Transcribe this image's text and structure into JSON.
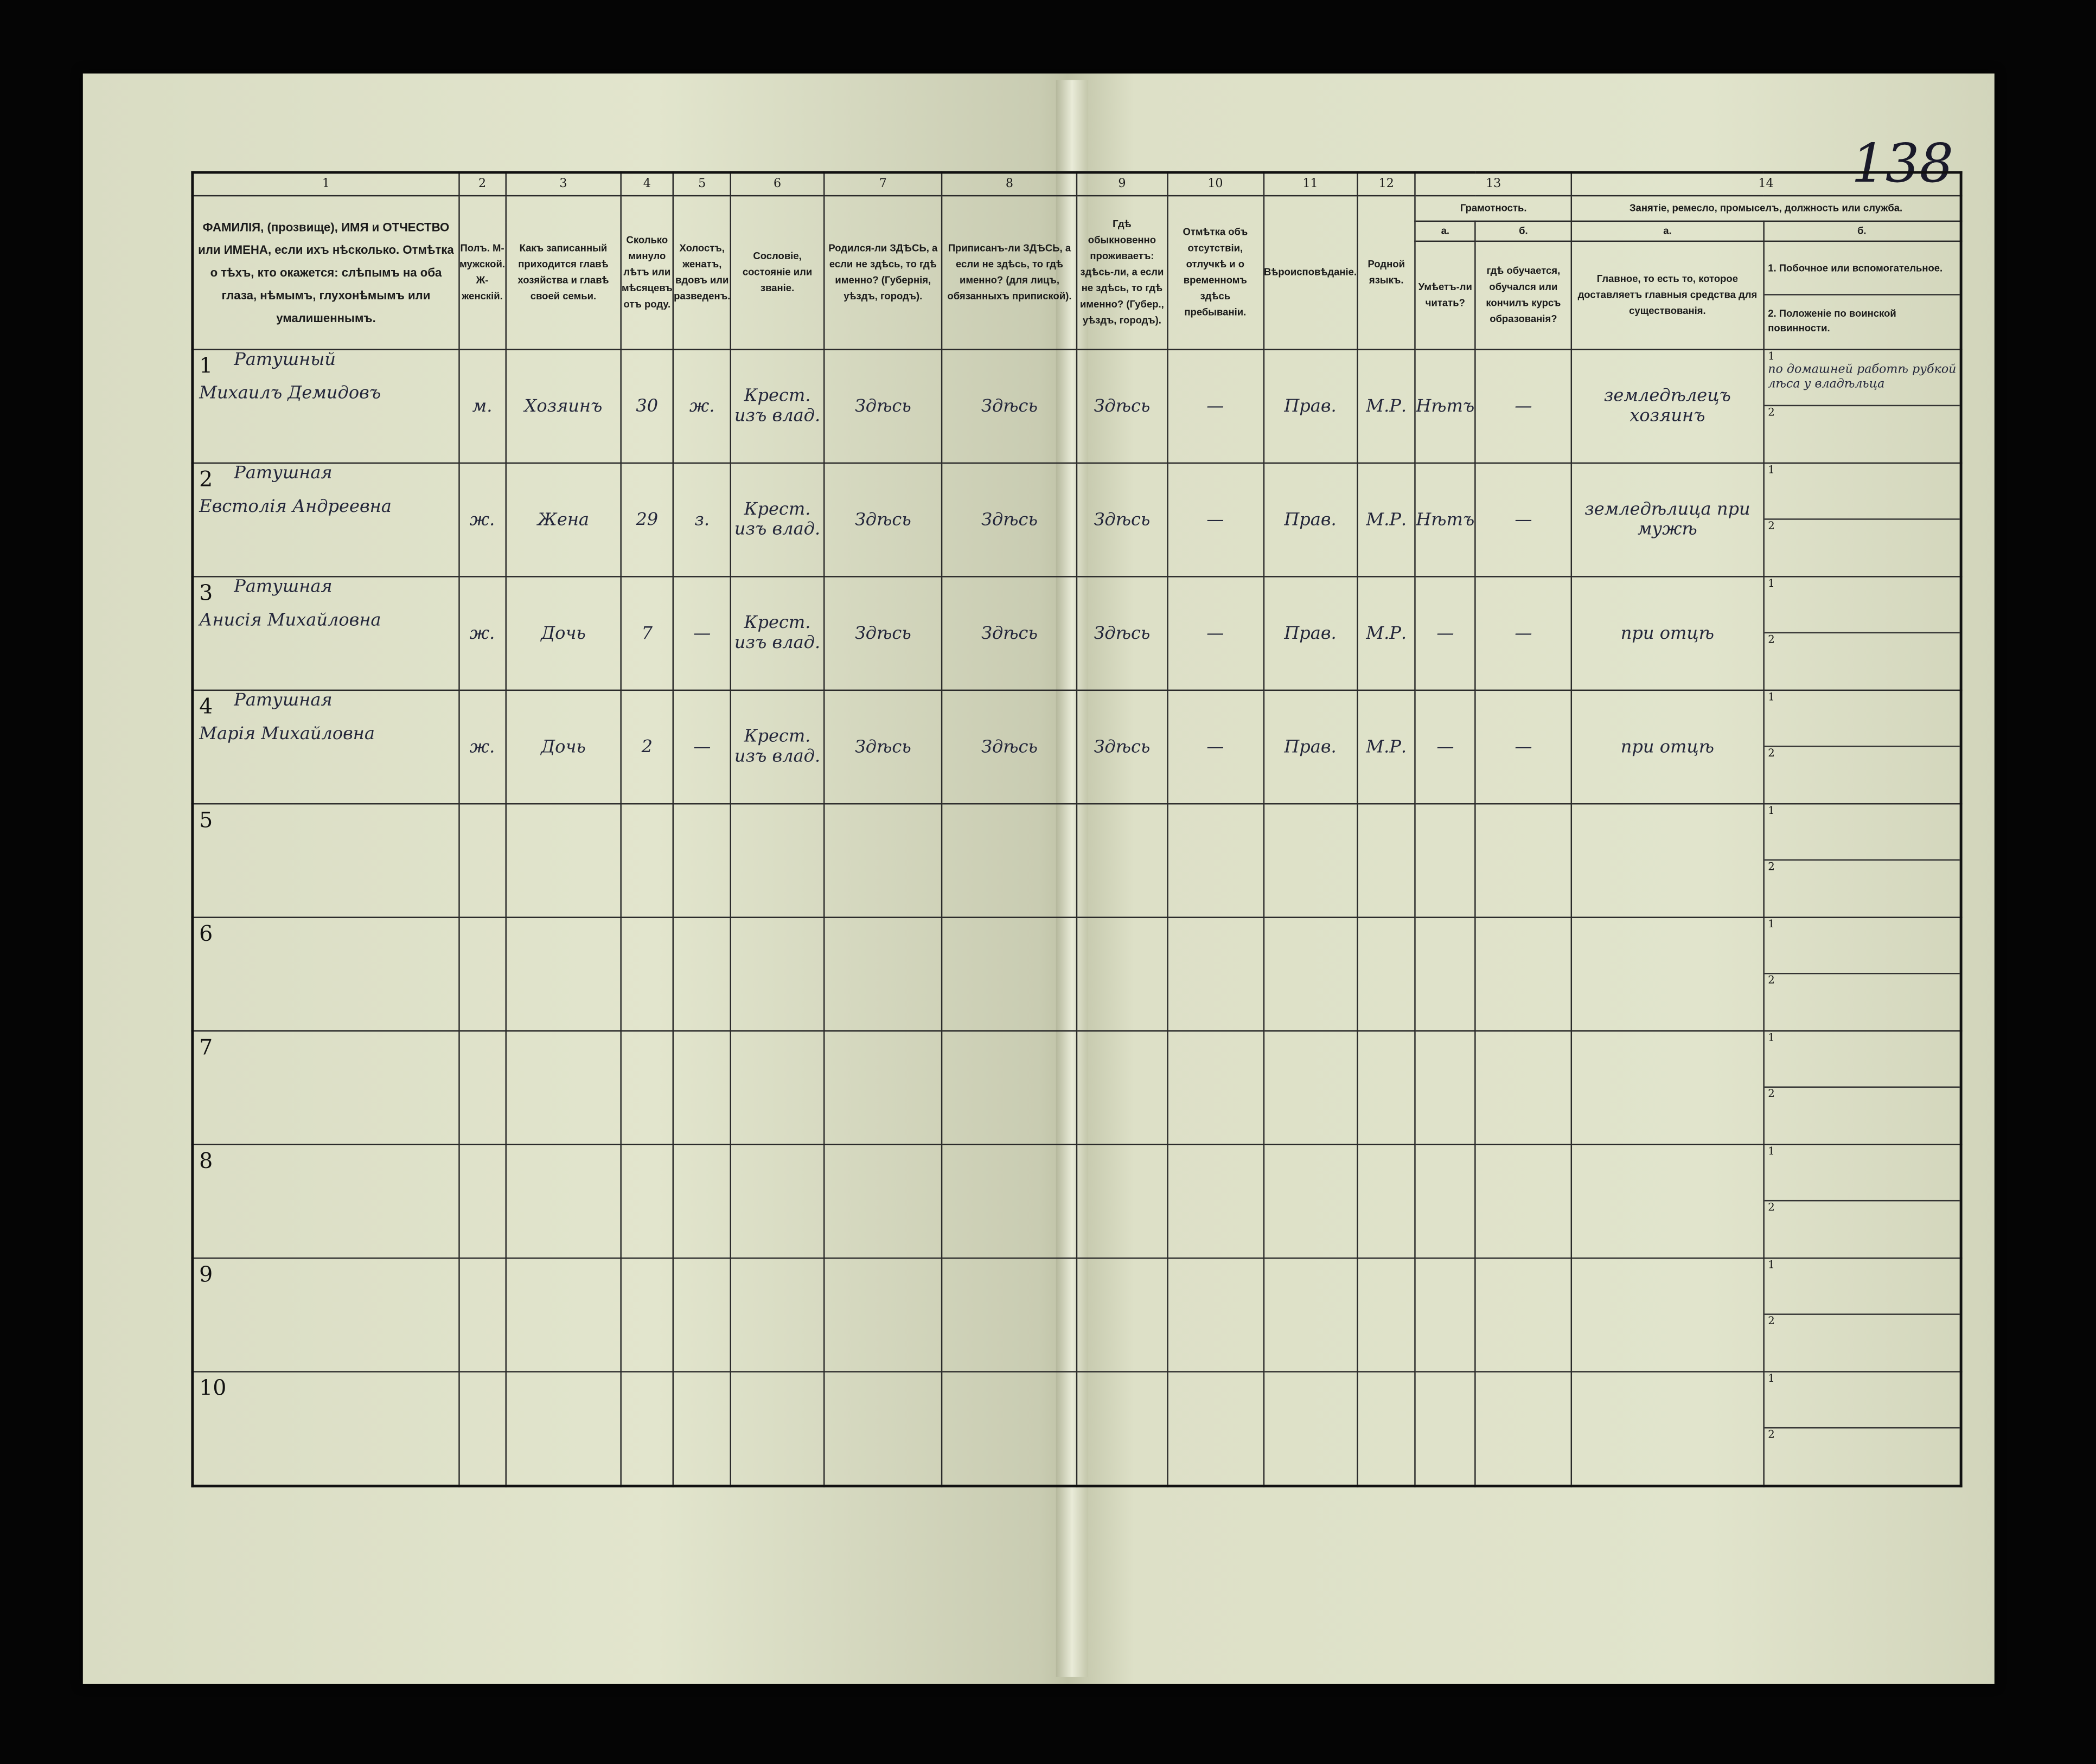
{
  "page_number": "138",
  "columns": [
    {
      "num": "1",
      "header": "ФАМИЛІЯ, (прозвище), ИМЯ и ОТЧЕСТВО или ИМЕНА, если ихъ нѣсколько. Отмѣтка о тѣхъ, кто окажется: слѣпымъ на оба глаза, нѣмымъ, глухонѣмымъ или умалишеннымъ."
    },
    {
      "num": "2",
      "header": "Полъ. М-мужской. Ж-женскій."
    },
    {
      "num": "3",
      "header": "Какъ записанный приходится главѣ хозяйства и главѣ своей семьи."
    },
    {
      "num": "4",
      "header": "Сколько минуло лѣтъ или мѣсяцевъ отъ роду."
    },
    {
      "num": "5",
      "header": "Холостъ, женатъ, вдовъ или разведенъ."
    },
    {
      "num": "6",
      "header": "Сословіе, состояніе или званіе."
    },
    {
      "num": "7",
      "header": "Родился-ли ЗДѢСЬ, а если не здѣсь, то гдѣ именно? (Губернія, уѣздъ, городъ)."
    },
    {
      "num": "8",
      "header": "Приписанъ-ли ЗДѢСЬ, а если не здѣсь, то гдѣ именно? (для лицъ, обязанныхъ припиской)."
    },
    {
      "num": "9",
      "header": "Гдѣ обыкновенно проживаетъ: здѣсь-ли, а если не здѣсь, то гдѣ именно? (Губер., уѣздъ, городъ)."
    },
    {
      "num": "10",
      "header": "Отмѣтка объ отсутствіи, отлучкѣ и о временномъ здѣсь пребываніи."
    },
    {
      "num": "11",
      "header": "Вѣроисповѣданіе."
    },
    {
      "num": "12",
      "header": "Родной языкъ."
    }
  ],
  "col13": {
    "num": "13",
    "title": "Грамотность.",
    "a_label": "а.",
    "a_header": "Умѣетъ-ли читать?",
    "b_label": "б.",
    "b_header": "гдѣ обучается, обучался или кончилъ курсъ образованія?"
  },
  "col14": {
    "num": "14",
    "title": "Занятіе, ремесло, промыселъ, должность или служба.",
    "a_label": "а.",
    "a_header": "Главное, то есть то, которое доставляетъ главныя средства для существованія.",
    "b_label": "б.",
    "b1": "1. Побочное или вспомогательное.",
    "b2": "2. Положеніе по воинской повинности."
  },
  "rows": [
    {
      "n": "1",
      "surname": "Ратушный",
      "name": "Михаилъ Демидовъ",
      "sex": "м.",
      "relation": "Хозяинъ",
      "age": "30",
      "marital": "ж.",
      "estate": "Крест. изъ влад.",
      "born": "Здѣсь",
      "registered": "Здѣсь",
      "resides": "Здѣсь",
      "absence": "—",
      "religion": "Прав.",
      "language": "М.Р.",
      "literate": "Нѣтъ",
      "education": "—",
      "occupation": "земледѣлецъ хозяинъ",
      "side1": "по домашней работѣ рубкой лѣса у владѣльца",
      "side2": ""
    },
    {
      "n": "2",
      "surname": "Ратушная",
      "name": "Евстолія Андреевна",
      "sex": "ж.",
      "relation": "Жена",
      "age": "29",
      "marital": "з.",
      "estate": "Крест. изъ влад.",
      "born": "Здѣсь",
      "registered": "Здѣсь",
      "resides": "Здѣсь",
      "absence": "—",
      "religion": "Прав.",
      "language": "М.Р.",
      "literate": "Нѣтъ",
      "education": "—",
      "occupation": "земледѣлица при мужѣ",
      "side1": "",
      "side2": ""
    },
    {
      "n": "3",
      "surname": "Ратушная",
      "name": "Анисія Михайловна",
      "sex": "ж.",
      "relation": "Дочь",
      "age": "7",
      "marital": "—",
      "estate": "Крест. изъ влад.",
      "born": "Здѣсь",
      "registered": "Здѣсь",
      "resides": "Здѣсь",
      "absence": "—",
      "religion": "Прав.",
      "language": "М.Р.",
      "literate": "—",
      "education": "—",
      "occupation": "при отцѣ",
      "side1": "",
      "side2": ""
    },
    {
      "n": "4",
      "surname": "Ратушная",
      "name": "Марія Михайловна",
      "sex": "ж.",
      "relation": "Дочь",
      "age": "2",
      "marital": "—",
      "estate": "Крест. изъ влад.",
      "born": "Здѣсь",
      "registered": "Здѣсь",
      "resides": "Здѣсь",
      "absence": "—",
      "religion": "Прав.",
      "language": "М.Р.",
      "literate": "—",
      "education": "—",
      "occupation": "при отцѣ",
      "side1": "",
      "side2": ""
    },
    {
      "n": "5"
    },
    {
      "n": "6"
    },
    {
      "n": "7"
    },
    {
      "n": "8"
    },
    {
      "n": "9"
    },
    {
      "n": "10"
    }
  ],
  "sub_numbers": {
    "one": "1",
    "two": "2"
  }
}
